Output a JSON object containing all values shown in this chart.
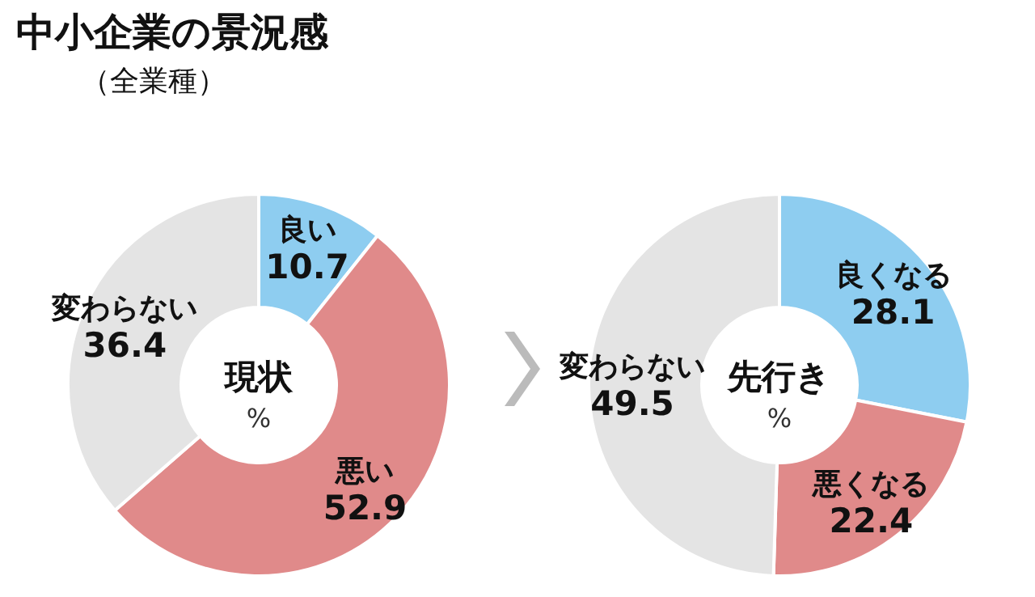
{
  "chart_data": [
    {
      "type": "donut",
      "title": "中小企業の景況感",
      "subtitle": "（全業種）",
      "categories": [
        "良い",
        "悪い",
        "変わらない"
      ],
      "values": [
        10.7,
        52.9,
        36.4
      ],
      "colors": [
        "#8ecdf0",
        "#e08a8a",
        "#e4e4e4"
      ],
      "data_labels": true,
      "annotations": [
        "現状",
        "%"
      ]
    },
    {
      "type": "donut",
      "categories": [
        "良くなる",
        "悪くなる",
        "変わらない"
      ],
      "values": [
        28.1,
        22.4,
        49.5
      ],
      "colors": [
        "#8ecdf0",
        "#e08a8a",
        "#e4e4e4"
      ],
      "data_labels": true,
      "annotations": [
        "先行き",
        "%"
      ]
    }
  ]
}
